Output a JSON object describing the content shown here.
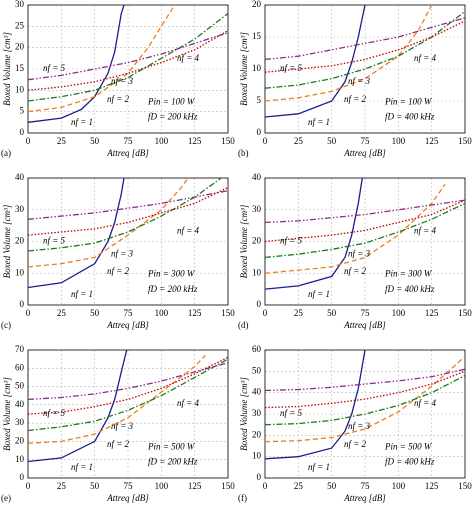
{
  "chart_data": [
    {
      "type": "line",
      "panel_label": "(a)",
      "xlabel": "Attreq [dB]",
      "ylabel": "Boxed Volume [cm³]",
      "annotations": [
        "Pin = 100 W",
        "fD = 200 kHz"
      ],
      "xlim": [
        0,
        150
      ],
      "xticks": [
        0,
        25,
        50,
        75,
        100,
        125,
        150
      ],
      "ylim": [
        0,
        30
      ],
      "yticks": [
        0,
        5,
        10,
        15,
        20,
        25,
        30
      ],
      "grid": true,
      "series": [
        {
          "name": "nf = 1",
          "color": "#1c1c8c",
          "linestyle": "solid",
          "x": [
            0,
            25,
            40,
            50,
            60,
            65,
            70,
            72
          ],
          "values": [
            2.5,
            3.5,
            5.5,
            8.5,
            14,
            19,
            28,
            30
          ]
        },
        {
          "name": "nf = 2",
          "color": "#f07d1a",
          "linestyle": "dashed",
          "x": [
            0,
            25,
            50,
            75,
            90,
            100,
            110
          ],
          "values": [
            5,
            6,
            8.5,
            14,
            20,
            25,
            30
          ]
        },
        {
          "name": "nf = 3",
          "color": "#1e7a1e",
          "linestyle": "dashdot",
          "x": [
            0,
            25,
            50,
            75,
            100,
            125,
            150
          ],
          "values": [
            7.5,
            8.5,
            10,
            13,
            17.5,
            22,
            28
          ]
        },
        {
          "name": "nf = 4",
          "color": "#c00000",
          "linestyle": "dotted",
          "x": [
            0,
            25,
            50,
            75,
            100,
            125,
            150
          ],
          "values": [
            10,
            10.8,
            12,
            14,
            16.5,
            19.5,
            24
          ]
        },
        {
          "name": "nf = 5",
          "color": "#8b2a8b",
          "linestyle": "dashdotdot",
          "x": [
            0,
            25,
            50,
            75,
            100,
            125,
            150
          ],
          "values": [
            12.5,
            13.5,
            15,
            16.5,
            18.5,
            21,
            23.5
          ]
        }
      ]
    },
    {
      "type": "line",
      "panel_label": "(b)",
      "xlabel": "Attreq [dB]",
      "ylabel": "Boxed Volume [cm³]",
      "annotations": [
        "Pin = 100 W",
        "fD = 400 kHz"
      ],
      "xlim": [
        0,
        150
      ],
      "xticks": [
        0,
        25,
        50,
        75,
        100,
        125,
        150
      ],
      "ylim": [
        0,
        20
      ],
      "yticks": [
        0,
        5,
        10,
        15,
        20
      ],
      "grid": true,
      "series": [
        {
          "name": "nf = 1",
          "color": "#1c1c8c",
          "linestyle": "solid",
          "x": [
            0,
            25,
            50,
            60,
            65,
            70,
            75
          ],
          "values": [
            2.5,
            3,
            5,
            8,
            11,
            15,
            20
          ]
        },
        {
          "name": "nf = 2",
          "color": "#f07d1a",
          "linestyle": "dashed",
          "x": [
            0,
            25,
            50,
            75,
            100,
            115,
            125
          ],
          "values": [
            5,
            5.5,
            6.5,
            8.5,
            12,
            16,
            20
          ]
        },
        {
          "name": "nf = 3",
          "color": "#1e7a1e",
          "linestyle": "dashdot",
          "x": [
            0,
            25,
            50,
            75,
            100,
            125,
            150
          ],
          "values": [
            7,
            7.5,
            8.5,
            10,
            12,
            15,
            19
          ]
        },
        {
          "name": "nf = 4",
          "color": "#c00000",
          "linestyle": "dotted",
          "x": [
            0,
            25,
            50,
            75,
            100,
            125,
            150
          ],
          "values": [
            9.5,
            10,
            10.5,
            11.5,
            13,
            15,
            17.5
          ]
        },
        {
          "name": "nf = 5",
          "color": "#8b2a8b",
          "linestyle": "dashdotdot",
          "x": [
            0,
            25,
            50,
            75,
            100,
            125,
            150
          ],
          "values": [
            11.5,
            12,
            13,
            14,
            15,
            16.5,
            18
          ]
        }
      ]
    },
    {
      "type": "line",
      "panel_label": "(c)",
      "xlabel": "Attreq [dB]",
      "ylabel": "Boxed Volume [cm³]",
      "annotations": [
        "Pin = 300 W",
        "fD = 200 kHz"
      ],
      "xlim": [
        0,
        150
      ],
      "xticks": [
        0,
        25,
        50,
        75,
        100,
        125,
        150
      ],
      "ylim": [
        0,
        40
      ],
      "yticks": [
        0,
        10,
        20,
        30,
        40
      ],
      "grid": true,
      "series": [
        {
          "name": "nf = 1",
          "color": "#1c1c8c",
          "linestyle": "solid",
          "x": [
            0,
            25,
            50,
            60,
            65,
            70,
            72
          ],
          "values": [
            5.5,
            7,
            13,
            20,
            26,
            35,
            40
          ]
        },
        {
          "name": "nf = 2",
          "color": "#f07d1a",
          "linestyle": "dashed",
          "x": [
            0,
            25,
            50,
            75,
            100,
            115,
            120
          ],
          "values": [
            12,
            13,
            15,
            22,
            30,
            37,
            40
          ]
        },
        {
          "name": "nf = 3",
          "color": "#1e7a1e",
          "linestyle": "dashdot",
          "x": [
            0,
            25,
            50,
            75,
            100,
            125,
            145
          ],
          "values": [
            17,
            18,
            19.5,
            23,
            28,
            34,
            40
          ]
        },
        {
          "name": "nf = 4",
          "color": "#c00000",
          "linestyle": "dotted",
          "x": [
            0,
            25,
            50,
            75,
            100,
            125,
            150
          ],
          "values": [
            22,
            23,
            24,
            26,
            29,
            32,
            37
          ]
        },
        {
          "name": "nf = 5",
          "color": "#8b2a8b",
          "linestyle": "dashdotdot",
          "x": [
            0,
            25,
            50,
            75,
            100,
            125,
            150
          ],
          "values": [
            27,
            28,
            29,
            30.5,
            32,
            34,
            36
          ]
        }
      ]
    },
    {
      "type": "line",
      "panel_label": "(d)",
      "xlabel": "Attreq [dB]",
      "ylabel": "Boxed Volume [cm³]",
      "annotations": [
        "Pin = 300 W",
        "fD = 400 kHz"
      ],
      "xlim": [
        0,
        150
      ],
      "xticks": [
        0,
        25,
        50,
        75,
        100,
        125,
        150
      ],
      "ylim": [
        0,
        40
      ],
      "yticks": [
        0,
        10,
        20,
        30,
        40
      ],
      "grid": true,
      "series": [
        {
          "name": "nf = 1",
          "color": "#1c1c8c",
          "linestyle": "solid",
          "x": [
            0,
            25,
            50,
            60,
            65,
            70,
            73
          ],
          "values": [
            5,
            6,
            9,
            15,
            22,
            32,
            40
          ]
        },
        {
          "name": "nf = 2",
          "color": "#f07d1a",
          "linestyle": "dashed",
          "x": [
            0,
            25,
            50,
            75,
            100,
            125,
            135
          ],
          "values": [
            10,
            11,
            12,
            15,
            22,
            32,
            38
          ]
        },
        {
          "name": "nf = 3",
          "color": "#1e7a1e",
          "linestyle": "dashdot",
          "x": [
            0,
            25,
            50,
            75,
            100,
            125,
            150
          ],
          "values": [
            15,
            16,
            17.5,
            19.5,
            23,
            27,
            32
          ]
        },
        {
          "name": "nf = 4",
          "color": "#c00000",
          "linestyle": "dotted",
          "x": [
            0,
            25,
            50,
            75,
            100,
            125,
            150
          ],
          "values": [
            20,
            21,
            22,
            23.5,
            26,
            28.5,
            33
          ]
        },
        {
          "name": "nf = 5",
          "color": "#8b2a8b",
          "linestyle": "dashdotdot",
          "x": [
            0,
            25,
            50,
            75,
            100,
            125,
            150
          ],
          "values": [
            26,
            26.5,
            27.5,
            28.5,
            30,
            31.5,
            33
          ]
        }
      ]
    },
    {
      "type": "line",
      "panel_label": "(e)",
      "xlabel": "Attreq [dB]",
      "ylabel": "Boxed Volume [cm³]",
      "annotations": [
        "Pin = 500 W",
        "fD = 200 kHz"
      ],
      "xlim": [
        0,
        150
      ],
      "xticks": [
        0,
        25,
        50,
        75,
        100,
        125,
        150
      ],
      "ylim": [
        0,
        70
      ],
      "yticks": [
        0,
        10,
        20,
        30,
        40,
        50,
        60,
        70
      ],
      "grid": true,
      "series": [
        {
          "name": "nf = 1",
          "color": "#1c1c8c",
          "linestyle": "solid",
          "x": [
            0,
            25,
            50,
            60,
            65,
            70,
            74
          ],
          "values": [
            9,
            11,
            20,
            33,
            43,
            58,
            70
          ]
        },
        {
          "name": "nf = 2",
          "color": "#f07d1a",
          "linestyle": "dashed",
          "x": [
            0,
            25,
            50,
            75,
            100,
            125,
            133
          ],
          "values": [
            19,
            20,
            24,
            33,
            47,
            61,
            67
          ]
        },
        {
          "name": "nf = 3",
          "color": "#1e7a1e",
          "linestyle": "dashdot",
          "x": [
            0,
            25,
            50,
            75,
            100,
            125,
            150
          ],
          "values": [
            26,
            28,
            31,
            37,
            45,
            55,
            65
          ]
        },
        {
          "name": "nf = 4",
          "color": "#c00000",
          "linestyle": "dotted",
          "x": [
            0,
            25,
            50,
            75,
            100,
            125,
            150
          ],
          "values": [
            35,
            36,
            39,
            43,
            49,
            57,
            66
          ]
        },
        {
          "name": "nf = 5",
          "color": "#8b2a8b",
          "linestyle": "dashdotdot",
          "x": [
            0,
            25,
            50,
            75,
            100,
            125,
            150
          ],
          "values": [
            43,
            44,
            46,
            49,
            53,
            58,
            63
          ]
        }
      ]
    },
    {
      "type": "line",
      "panel_label": "(f)",
      "xlabel": "Attreq [dB]",
      "ylabel": "Boxed Volume [cm³]",
      "annotations": [
        "Pin = 500 W",
        "fD = 400 kHz"
      ],
      "xlim": [
        0,
        150
      ],
      "xticks": [
        0,
        25,
        50,
        75,
        100,
        125,
        150
      ],
      "ylim": [
        0,
        60
      ],
      "yticks": [
        0,
        10,
        20,
        30,
        40,
        50,
        60
      ],
      "grid": true,
      "series": [
        {
          "name": "nf = 1",
          "color": "#1c1c8c",
          "linestyle": "solid",
          "x": [
            0,
            25,
            50,
            60,
            65,
            70,
            75
          ],
          "values": [
            9,
            10,
            14,
            22,
            30,
            42,
            60
          ]
        },
        {
          "name": "nf = 2",
          "color": "#f07d1a",
          "linestyle": "dashed",
          "x": [
            0,
            25,
            50,
            75,
            100,
            125,
            150
          ],
          "values": [
            17,
            17.5,
            19,
            23,
            31,
            43,
            57
          ]
        },
        {
          "name": "nf = 3",
          "color": "#1e7a1e",
          "linestyle": "dashdot",
          "x": [
            0,
            25,
            50,
            75,
            100,
            125,
            150
          ],
          "values": [
            25,
            25.5,
            27,
            30,
            34,
            40,
            48
          ]
        },
        {
          "name": "nf = 4",
          "color": "#c00000",
          "linestyle": "dotted",
          "x": [
            0,
            25,
            50,
            75,
            100,
            125,
            150
          ],
          "values": [
            33,
            33.5,
            35,
            37,
            40,
            44,
            50
          ]
        },
        {
          "name": "nf = 5",
          "color": "#8b2a8b",
          "linestyle": "dashdotdot",
          "x": [
            0,
            25,
            50,
            75,
            100,
            125,
            150
          ],
          "values": [
            41,
            41.5,
            42.5,
            44,
            45.5,
            47.5,
            51
          ]
        }
      ]
    }
  ]
}
